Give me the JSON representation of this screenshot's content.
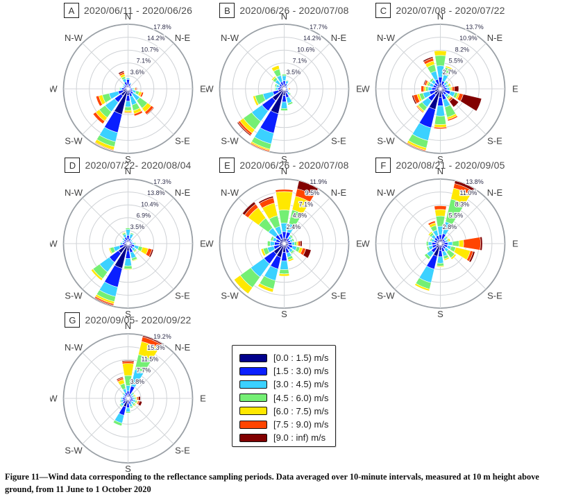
{
  "compass_labels": [
    "N",
    "N-E",
    "E",
    "S-E",
    "S",
    "S-W",
    "W",
    "N-W"
  ],
  "legend": {
    "items": [
      {
        "label": "[0.0 : 1.5) m/s",
        "color": "#00008b"
      },
      {
        "label": "[1.5 : 3.0) m/s",
        "color": "#0a1fff"
      },
      {
        "label": "[3.0 : 4.5) m/s",
        "color": "#3bd1ff"
      },
      {
        "label": "[4.5 : 6.0) m/s",
        "color": "#74ef74"
      },
      {
        "label": "[6.0 : 7.5) m/s",
        "color": "#ffe800"
      },
      {
        "label": "[7.5 : 9.0) m/s",
        "color": "#ff4500"
      },
      {
        "label": "[9.0 : inf) m/s",
        "color": "#810000"
      }
    ]
  },
  "chart_data": [
    {
      "type": "bar",
      "subtype": "windrose-stacked-polar",
      "panel": "A",
      "title": "2020/06/11 - 2020/06/26",
      "ring_labels": [
        "3.6%",
        "7.1%",
        "10.7%",
        "14.2%",
        "17.8%"
      ],
      "ring_max": 17.8,
      "directions": [
        "N",
        "NNE",
        "NE",
        "ENE",
        "E",
        "ESE",
        "SE",
        "SSE",
        "S",
        "SSW",
        "SW",
        "WSW",
        "W",
        "WNW",
        "NW",
        "NNW"
      ],
      "speed_bins": [
        "[0.0:1.5)",
        "[1.5:3.0)",
        "[3.0:4.5)",
        "[4.5:6.0)",
        "[6.0:7.5)",
        "[7.5:9.0)",
        "[9.0:inf)"
      ],
      "sectors_pct": [
        [
          1.0,
          1.6,
          0.4,
          0,
          0,
          0,
          0
        ],
        [
          0.7,
          0.8,
          0.3,
          0,
          0,
          0,
          0
        ],
        [
          0.5,
          0.5,
          0.2,
          0,
          0,
          0,
          0
        ],
        [
          0.4,
          0.4,
          0.2,
          0,
          0,
          0,
          0
        ],
        [
          0.6,
          0.5,
          0.4,
          0.3,
          0.2,
          0.3,
          0.2
        ],
        [
          0.7,
          0.6,
          1.0,
          0.9,
          0.7,
          0.5,
          0
        ],
        [
          0.9,
          0.9,
          2.2,
          2.6,
          1.3,
          0.8,
          0.2
        ],
        [
          1.1,
          1.1,
          2.4,
          1.6,
          0.9,
          0.6,
          0
        ],
        [
          1.8,
          1.6,
          1.6,
          1.0,
          0.5,
          0.2,
          0
        ],
        [
          7.2,
          5.2,
          2.6,
          1.4,
          0.9,
          0.2,
          0
        ],
        [
          2.4,
          2.2,
          3.2,
          2.0,
          1.2,
          0.9,
          0
        ],
        [
          1.4,
          1.4,
          2.6,
          1.9,
          1.0,
          0.8,
          0
        ],
        [
          0.9,
          0.8,
          0.5,
          0.2,
          0,
          0,
          0
        ],
        [
          0.7,
          0.6,
          0.3,
          0,
          0,
          0,
          0
        ],
        [
          0.7,
          0.6,
          0.4,
          0.2,
          0,
          0,
          0
        ],
        [
          1.0,
          1.0,
          0.9,
          0.6,
          0.7,
          0.5,
          0.4
        ]
      ]
    },
    {
      "type": "bar",
      "subtype": "windrose-stacked-polar",
      "panel": "B",
      "title": "2020/06/26 - 2020/07/08",
      "ring_labels": [
        "3.5%",
        "7.1%",
        "10.6%",
        "14.2%",
        "17.7%"
      ],
      "ring_max": 17.7,
      "directions": [
        "N",
        "NNE",
        "NE",
        "ENE",
        "E",
        "ESE",
        "SE",
        "SSE",
        "S",
        "SSW",
        "SW",
        "WSW",
        "W",
        "WNW",
        "NW",
        "NNW"
      ],
      "speed_bins": [
        "[0.0:1.5)",
        "[1.5:3.0)",
        "[3.0:4.5)",
        "[4.5:6.0)",
        "[6.0:7.5)",
        "[7.5:9.0)",
        "[9.0:inf)"
      ],
      "sectors_pct": [
        [
          1.0,
          1.2,
          1.4,
          0.4,
          0,
          0,
          0
        ],
        [
          0.7,
          0.8,
          0.8,
          0.2,
          0,
          0,
          0
        ],
        [
          0.5,
          0.5,
          0.3,
          0,
          0,
          0,
          0
        ],
        [
          0.4,
          0.4,
          0.2,
          0,
          0,
          0,
          0
        ],
        [
          0.5,
          0.4,
          0.2,
          0,
          0.2,
          0.3,
          0
        ],
        [
          0.5,
          0.5,
          0.3,
          0,
          0,
          0,
          0
        ],
        [
          0.7,
          0.7,
          0.6,
          0.3,
          0,
          0,
          0
        ],
        [
          1.2,
          1.3,
          1.6,
          0.5,
          0,
          0,
          0
        ],
        [
          1.8,
          1.8,
          1.8,
          0.6,
          0,
          0,
          0
        ],
        [
          7.0,
          5.5,
          3.0,
          1.5,
          0.4,
          0.3,
          0
        ],
        [
          4.0,
          3.5,
          3.5,
          2.8,
          1.2,
          0.6,
          0.3
        ],
        [
          1.6,
          1.6,
          2.8,
          2.2,
          0.6,
          0,
          0
        ],
        [
          0.9,
          0.8,
          0.6,
          0.3,
          0,
          0,
          0
        ],
        [
          0.8,
          0.7,
          0.8,
          0.4,
          0,
          0,
          0
        ],
        [
          0.9,
          0.8,
          1.4,
          0.8,
          0.4,
          0,
          0
        ],
        [
          1.0,
          1.0,
          1.8,
          1.8,
          1.0,
          0,
          0
        ]
      ]
    },
    {
      "type": "bar",
      "subtype": "windrose-stacked-polar",
      "panel": "C",
      "title": "2020/07/08 - 2020/07/22",
      "ring_labels": [
        "2.7%",
        "5.5%",
        "8.2%",
        "10.9%",
        "13.7%"
      ],
      "ring_max": 13.7,
      "directions": [
        "N",
        "NNE",
        "NE",
        "ENE",
        "E",
        "ESE",
        "SE",
        "SSE",
        "S",
        "SSW",
        "SW",
        "WSW",
        "W",
        "WNW",
        "NW",
        "NNW"
      ],
      "speed_bins": [
        "[0.0:1.5)",
        "[1.5:3.0)",
        "[3.0:4.5)",
        "[4.5:6.0)",
        "[6.0:7.5)",
        "[7.5:9.0)",
        "[9.0:inf)"
      ],
      "sectors_pct": [
        [
          1.2,
          1.3,
          2.4,
          2.2,
          1.0,
          0,
          0
        ],
        [
          0.8,
          0.9,
          1.4,
          1.6,
          0.3,
          0,
          0
        ],
        [
          0.6,
          0.6,
          0.6,
          0.3,
          0,
          0,
          0
        ],
        [
          0.6,
          0.6,
          0.5,
          0.3,
          0.3,
          0,
          0
        ],
        [
          0.7,
          0.7,
          0.5,
          0.3,
          0.3,
          0.5,
          0.9
        ],
        [
          1.0,
          1.2,
          1.0,
          0.6,
          0.4,
          0.8,
          4.0
        ],
        [
          0.8,
          0.8,
          0.6,
          0.4,
          0.3,
          0.4,
          1.5
        ],
        [
          1.2,
          1.2,
          1.6,
          2.2,
          0.5,
          0.3,
          0
        ],
        [
          1.8,
          1.8,
          2.2,
          1.8,
          0.6,
          0.3,
          0
        ],
        [
          4.5,
          4.0,
          2.8,
          1.6,
          0.5,
          0.2,
          0
        ],
        [
          1.6,
          1.6,
          1.6,
          1.0,
          0.3,
          0.2,
          0
        ],
        [
          1.2,
          1.2,
          1.4,
          0.8,
          0.5,
          0.8,
          0.3
        ],
        [
          0.9,
          0.9,
          0.8,
          0.5,
          0.4,
          0.6,
          0
        ],
        [
          0.8,
          0.8,
          0.8,
          0.4,
          0.3,
          0.4,
          0.2
        ],
        [
          0.8,
          0.8,
          0.8,
          0.4,
          0,
          0,
          0
        ],
        [
          1.0,
          1.1,
          1.8,
          1.4,
          0.8,
          0.6,
          0.3
        ]
      ]
    },
    {
      "type": "bar",
      "subtype": "windrose-stacked-polar",
      "panel": "D",
      "title": "2020/07/22- 2020/08/04",
      "ring_labels": [
        "3.5%",
        "6.9%",
        "10.4%",
        "13.8%",
        "17.3%"
      ],
      "ring_max": 17.3,
      "directions": [
        "N",
        "NNE",
        "NE",
        "ENE",
        "E",
        "ESE",
        "SE",
        "SSE",
        "S",
        "SSW",
        "SW",
        "WSW",
        "W",
        "WNW",
        "NW",
        "NNW"
      ],
      "speed_bins": [
        "[0.0:1.5)",
        "[1.5:3.0)",
        "[3.0:4.5)",
        "[4.5:6.0)",
        "[6.0:7.5)",
        "[7.5:9.0)",
        "[9.0:inf)"
      ],
      "sectors_pct": [
        [
          1.0,
          1.2,
          1.6,
          0.4,
          0,
          0,
          0
        ],
        [
          0.7,
          0.8,
          1.2,
          0.3,
          0,
          0,
          0
        ],
        [
          0.5,
          0.5,
          0.4,
          0,
          0,
          0,
          0
        ],
        [
          0.5,
          0.5,
          0.3,
          0,
          0,
          0,
          0
        ],
        [
          0.6,
          0.6,
          0.5,
          0.3,
          0,
          0,
          0
        ],
        [
          0.9,
          0.9,
          1.2,
          1.0,
          1.6,
          1.0,
          0.4
        ],
        [
          0.8,
          0.8,
          0.8,
          0.4,
          0.2,
          0,
          0
        ],
        [
          1.2,
          1.3,
          1.6,
          0.6,
          0.2,
          0,
          0
        ],
        [
          2.0,
          2.0,
          2.0,
          0.8,
          0.2,
          0,
          0
        ],
        [
          6.8,
          5.2,
          2.6,
          1.4,
          0.6,
          0.4,
          0.2
        ],
        [
          3.2,
          3.0,
          3.2,
          2.2,
          0.6,
          0,
          0
        ],
        [
          1.2,
          1.2,
          1.6,
          1.0,
          0.3,
          0,
          0
        ],
        [
          0.8,
          0.7,
          0.5,
          0.2,
          0,
          0,
          0
        ],
        [
          0.6,
          0.6,
          0.4,
          0,
          0,
          0,
          0
        ],
        [
          0.7,
          0.7,
          0.5,
          0.2,
          0,
          0,
          0
        ],
        [
          0.9,
          0.9,
          0.8,
          0.4,
          0.2,
          0,
          0
        ]
      ]
    },
    {
      "type": "bar",
      "subtype": "windrose-stacked-polar",
      "panel": "E",
      "title": "2020/06/26 - 2020/07/08",
      "ring_labels": [
        "2.4%",
        "4.8%",
        "7.1%",
        "9.5%",
        "11.9%"
      ],
      "ring_max": 11.9,
      "directions": [
        "N",
        "NNE",
        "NE",
        "ENE",
        "E",
        "ESE",
        "SE",
        "SSE",
        "S",
        "SSW",
        "SW",
        "WSW",
        "W",
        "WNW",
        "NW",
        "NNW"
      ],
      "speed_bins": [
        "[0.0:1.5)",
        "[1.5:3.0)",
        "[3.0:4.5)",
        "[4.5:6.0)",
        "[6.0:7.5)",
        "[7.5:9.0)",
        "[9.0:inf)"
      ],
      "sectors_pct": [
        [
          1.0,
          1.2,
          1.6,
          2.4,
          3.4,
          0.4,
          0
        ],
        [
          1.0,
          1.2,
          1.6,
          2.6,
          2.6,
          1.4,
          1.5
        ],
        [
          0.6,
          0.6,
          0.5,
          0.3,
          0,
          0,
          0
        ],
        [
          0.6,
          0.6,
          0.4,
          0.3,
          0,
          0,
          0
        ],
        [
          0.7,
          0.7,
          0.5,
          0.4,
          0.3,
          0.4,
          0.3
        ],
        [
          0.8,
          0.8,
          0.8,
          0.6,
          0.5,
          0.6,
          1.0
        ],
        [
          0.7,
          0.7,
          0.6,
          0.3,
          0,
          0,
          0
        ],
        [
          0.9,
          0.9,
          0.8,
          0.5,
          0.3,
          0,
          0
        ],
        [
          1.6,
          1.6,
          1.6,
          0.8,
          0.4,
          0,
          0
        ],
        [
          2.6,
          2.2,
          2.2,
          1.6,
          0.6,
          0,
          0
        ],
        [
          2.4,
          2.2,
          3.0,
          2.4,
          1.4,
          0,
          0
        ],
        [
          1.0,
          1.0,
          1.2,
          0.8,
          0.4,
          0,
          0
        ],
        [
          0.9,
          0.9,
          0.8,
          0.5,
          0,
          0,
          0
        ],
        [
          0.8,
          0.8,
          0.6,
          0.4,
          0,
          0,
          0
        ],
        [
          1.0,
          1.0,
          1.6,
          2.2,
          2.4,
          0.8,
          0.5
        ],
        [
          0.9,
          1.0,
          1.4,
          2.0,
          2.4,
          1.0,
          0.3
        ]
      ]
    },
    {
      "type": "bar",
      "subtype": "windrose-stacked-polar",
      "panel": "F",
      "title": "2020/08/21 - 2020/09/05",
      "ring_labels": [
        "2.8%",
        "5.5%",
        "8.3%",
        "11.0%",
        "13.8%"
      ],
      "ring_max": 13.8,
      "directions": [
        "N",
        "NNE",
        "NE",
        "ENE",
        "E",
        "ESE",
        "SE",
        "SSE",
        "S",
        "SSW",
        "SW",
        "WSW",
        "W",
        "WNW",
        "NW",
        "NNW"
      ],
      "speed_bins": [
        "[0.0:1.5)",
        "[1.5:3.0)",
        "[3.0:4.5)",
        "[4.5:6.0)",
        "[6.0:7.5)",
        "[7.5:9.0)",
        "[9.0:inf)"
      ],
      "sectors_pct": [
        [
          0.9,
          1.0,
          1.8,
          2.2,
          1.4,
          0.8,
          0
        ],
        [
          1.0,
          1.2,
          2.6,
          5.0,
          2.4,
          1.0,
          0.6
        ],
        [
          0.6,
          0.6,
          0.5,
          0.3,
          0,
          0,
          0
        ],
        [
          0.6,
          0.6,
          0.4,
          0.3,
          0.3,
          0,
          0
        ],
        [
          0.8,
          0.8,
          1.0,
          1.4,
          1.0,
          3.6,
          0.4
        ],
        [
          0.8,
          0.8,
          0.8,
          1.0,
          3.2,
          0.6,
          0.4
        ],
        [
          0.7,
          0.7,
          0.8,
          1.6,
          0.4,
          0,
          0
        ],
        [
          0.9,
          0.9,
          1.0,
          0.6,
          0.3,
          0,
          0
        ],
        [
          1.4,
          1.4,
          1.4,
          0.6,
          0.2,
          0,
          0
        ],
        [
          2.8,
          2.8,
          3.0,
          1.4,
          0.4,
          0,
          0
        ],
        [
          1.2,
          1.2,
          1.2,
          0.6,
          0,
          0,
          0
        ],
        [
          0.9,
          0.9,
          0.8,
          0.4,
          0,
          0,
          0
        ],
        [
          0.9,
          0.9,
          0.8,
          0.4,
          0,
          0,
          0
        ],
        [
          0.7,
          0.7,
          0.6,
          0.3,
          0,
          0,
          0
        ],
        [
          0.8,
          0.8,
          0.8,
          0.5,
          0.3,
          0,
          0
        ],
        [
          0.9,
          0.9,
          1.2,
          1.0,
          0.6,
          0.4,
          0
        ]
      ]
    },
    {
      "type": "bar",
      "subtype": "windrose-stacked-polar",
      "panel": "G",
      "title": "2020/09/05- 2020/09/22",
      "ring_labels": [
        "3.8%",
        "7.7%",
        "11.5%",
        "15.3%",
        "19.2%"
      ],
      "ring_max": 19.2,
      "directions": [
        "N",
        "NNE",
        "NE",
        "ENE",
        "E",
        "ESE",
        "SE",
        "SSE",
        "S",
        "SSW",
        "SW",
        "WSW",
        "W",
        "WNW",
        "NW",
        "NNW"
      ],
      "speed_bins": [
        "[0.0:1.5)",
        "[1.5:3.0)",
        "[3.0:4.5)",
        "[4.5:6.0)",
        "[6.0:7.5)",
        "[7.5:9.0)",
        "[9.0:inf)"
      ],
      "sectors_pct": [
        [
          1.0,
          1.2,
          1.6,
          3.0,
          3.6,
          0.6,
          0.3
        ],
        [
          1.4,
          2.4,
          5.0,
          4.6,
          4.0,
          1.4,
          0.4
        ],
        [
          0.6,
          0.7,
          0.6,
          0.4,
          0,
          0,
          0
        ],
        [
          0.6,
          0.6,
          0.5,
          0.3,
          0.3,
          0,
          0
        ],
        [
          0.7,
          0.7,
          0.6,
          0.4,
          0.3,
          0.4,
          0.6
        ],
        [
          0.8,
          0.8,
          0.7,
          0.5,
          0.3,
          0.4,
          0.8
        ],
        [
          0.7,
          0.7,
          0.8,
          0.5,
          0.3,
          0,
          0
        ],
        [
          0.9,
          0.9,
          0.8,
          0.4,
          0,
          0,
          0
        ],
        [
          1.4,
          1.4,
          1.2,
          0.4,
          0,
          0,
          0
        ],
        [
          2.6,
          2.6,
          2.4,
          0.8,
          0,
          0,
          0
        ],
        [
          1.0,
          1.0,
          0.8,
          0.4,
          0,
          0,
          0
        ],
        [
          0.8,
          0.8,
          0.6,
          0.3,
          0,
          0,
          0
        ],
        [
          0.8,
          0.8,
          0.5,
          0.2,
          0,
          0,
          0
        ],
        [
          0.6,
          0.6,
          0.4,
          0,
          0,
          0,
          0
        ],
        [
          0.7,
          0.7,
          0.5,
          0.3,
          0,
          0,
          0
        ],
        [
          0.9,
          0.9,
          1.2,
          1.6,
          1.2,
          0.5,
          0.3
        ]
      ]
    }
  ],
  "caption": {
    "text": "Figure 11—Wind data corresponding to the reflectance sampling periods. Data averaged over 10-minute intervals, measured at 10 m height above ground, from 11 June to 1 October 2020"
  }
}
